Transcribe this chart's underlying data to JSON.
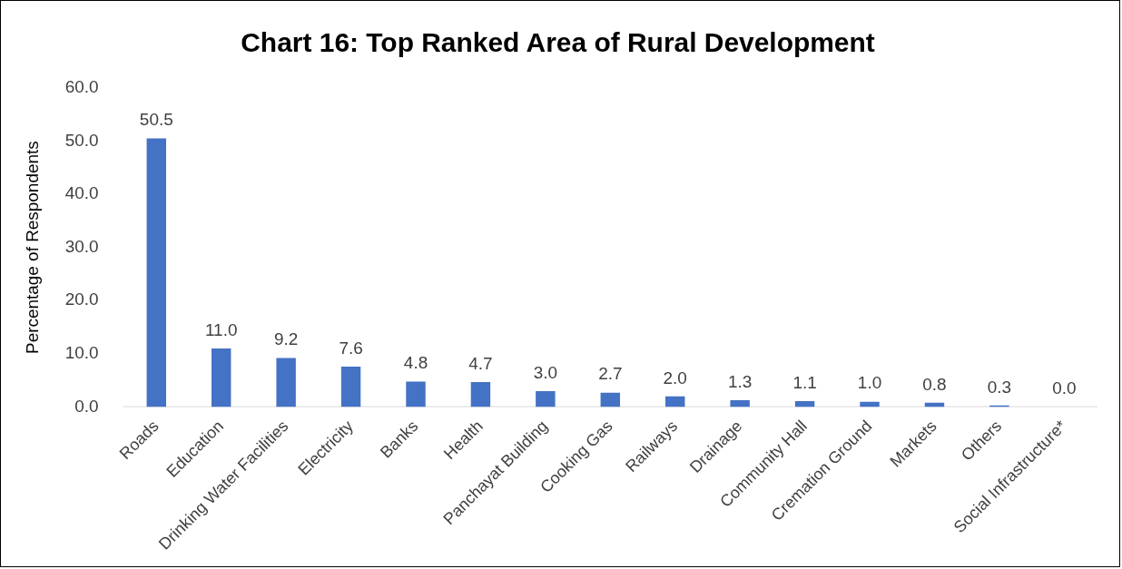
{
  "chart_data": {
    "type": "bar",
    "title": "Chart 16: Top Ranked Area of Rural Development",
    "ylabel": "Percentage of Respondents",
    "categories": [
      "Roads",
      "Education",
      "Drinking Water Facilities",
      "Electricity",
      "Banks",
      "Health",
      "Panchayat Building",
      "Cooking Gas",
      "Railways",
      "Drainage",
      "Community Hall",
      "Cremation Ground",
      "Markets",
      "Others",
      "Social Infrastructure*"
    ],
    "values": [
      50.5,
      11.0,
      9.2,
      7.6,
      4.8,
      4.7,
      3.0,
      2.7,
      2.0,
      1.3,
      1.1,
      1.0,
      0.8,
      0.3,
      0.0
    ],
    "value_labels": [
      "50.5",
      "11.0",
      "9.2",
      "7.6",
      "4.8",
      "4.7",
      "3.0",
      "2.7",
      "2.0",
      "1.3",
      "1.1",
      "1.0",
      "0.8",
      "0.3",
      "0.0"
    ],
    "color": "#4472c4",
    "ylim": [
      0,
      60
    ],
    "yticks": [
      {
        "value": 0,
        "label": "0.0"
      },
      {
        "value": 10,
        "label": "10.0"
      },
      {
        "value": 20,
        "label": "20.0"
      },
      {
        "value": 30,
        "label": "30.0"
      },
      {
        "value": 40,
        "label": "40.0"
      },
      {
        "value": 50,
        "label": "50.0"
      },
      {
        "value": 60,
        "label": "60.0"
      }
    ],
    "grid": false,
    "legend": false
  }
}
